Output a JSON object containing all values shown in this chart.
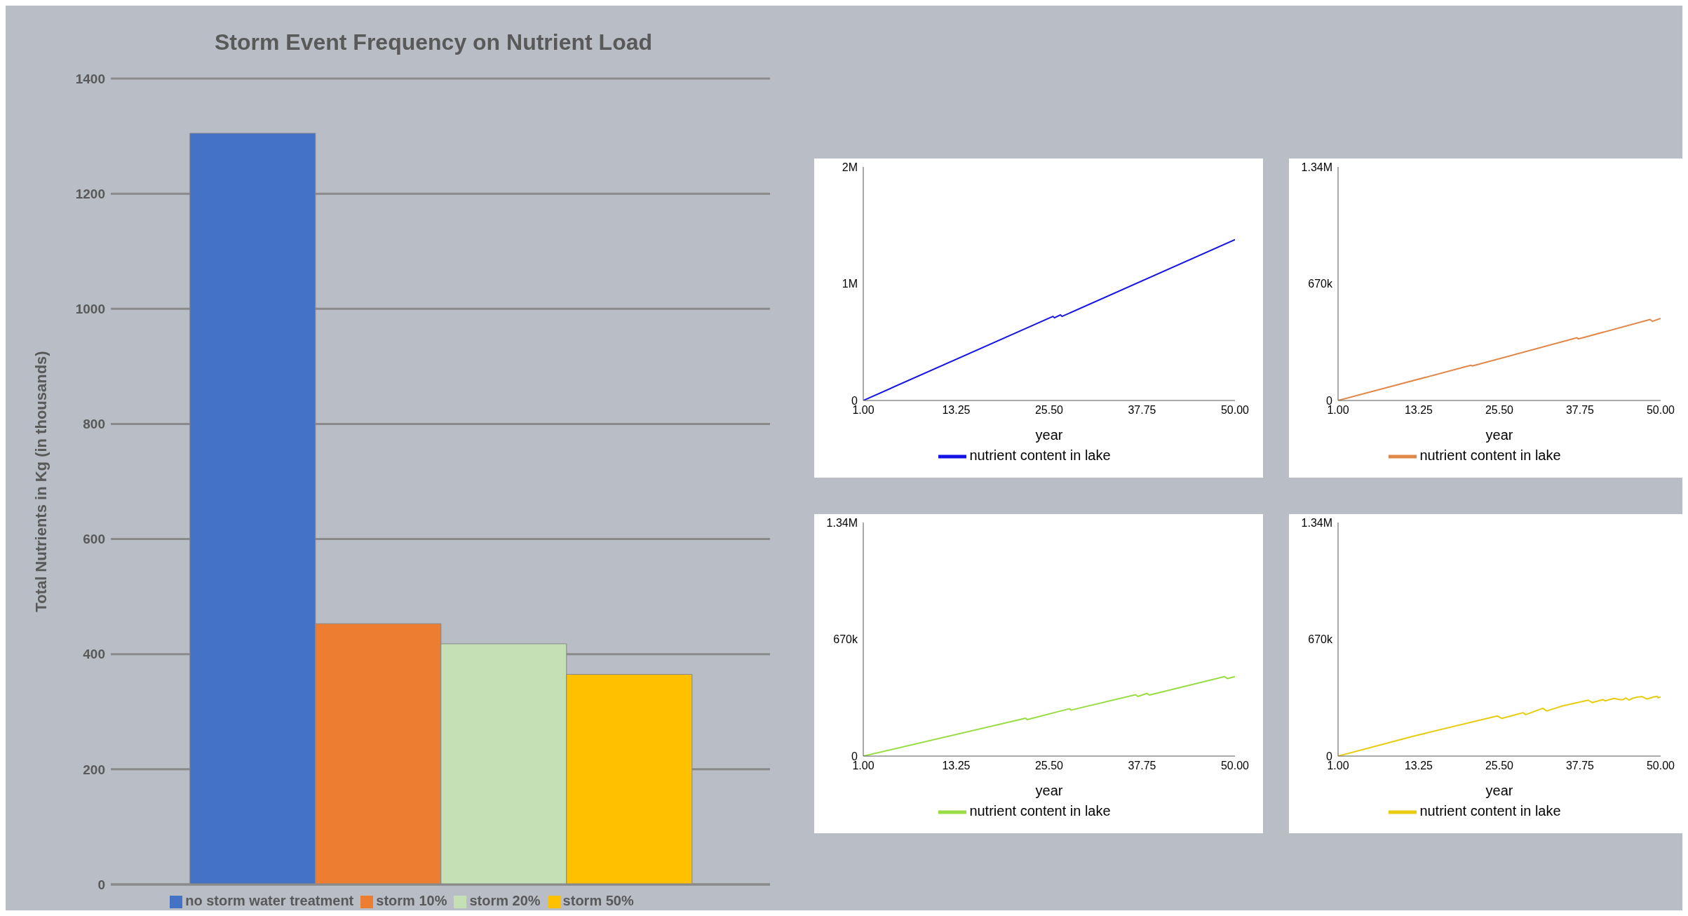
{
  "chart_data": [
    {
      "type": "bar",
      "title": "Storm Event Frequency on Nutrient Load",
      "ylabel": "Total Nutrients in Kg (in thousands)",
      "categories": [
        null
      ],
      "series": [
        {
          "name": "no storm water treatment",
          "color": "#4472c4",
          "values": [
            1305
          ]
        },
        {
          "name": "storm 10%",
          "color": "#ed7d31",
          "values": [
            453
          ]
        },
        {
          "name": "storm 20%",
          "color": "#c5e0b4",
          "values": [
            418
          ]
        },
        {
          "name": "storm 50%",
          "color": "#ffc000",
          "values": [
            365
          ]
        }
      ],
      "ylim": [
        0,
        1400
      ],
      "yticks": [
        0,
        200,
        400,
        600,
        800,
        1000,
        1200,
        1400
      ],
      "grid": "y",
      "legend": "bottom"
    },
    {
      "type": "line",
      "xlabel": "year",
      "xlim": [
        1,
        50
      ],
      "xticks": [
        {
          "value": 1,
          "label": "1.00"
        },
        {
          "value": 13.25,
          "label": "13.25"
        },
        {
          "value": 25.5,
          "label": "25.50"
        },
        {
          "value": 37.75,
          "label": "37.75"
        },
        {
          "value": 50,
          "label": "50.00"
        }
      ],
      "ylim": [
        0,
        2000000
      ],
      "yticks": [
        0,
        {
          "value": 1000000,
          "label": "1M"
        },
        {
          "value": 2000000,
          "label": "2M"
        }
      ],
      "legend": "bottom",
      "marker": "none",
      "series": [
        {
          "name": "nutrient content in lake",
          "color": "#1414e6",
          "x": [
            1,
            26,
            26.2,
            27,
            27.2,
            50
          ],
          "values": [
            0,
            720000,
            708000,
            733000,
            720000,
            1377000
          ]
        }
      ]
    },
    {
      "type": "line",
      "xlabel": "year",
      "xlim": [
        1,
        50
      ],
      "xticks": [
        {
          "value": 1,
          "label": "1.00"
        },
        {
          "value": 13.25,
          "label": "13.25"
        },
        {
          "value": 25.5,
          "label": "25.50"
        },
        {
          "value": 37.75,
          "label": "37.75"
        },
        {
          "value": 50,
          "label": "50.00"
        }
      ],
      "ylim": [
        0,
        1340000
      ],
      "yticks": [
        0,
        {
          "value": 670000,
          "label": "670k"
        },
        {
          "value": 1340000,
          "label": "1.34M"
        }
      ],
      "legend": "bottom",
      "marker": "none",
      "series": [
        {
          "name": "nutrient content in lake",
          "color": "#e0884a",
          "x": [
            1,
            21.2,
            21.4,
            37.3,
            37.5,
            48.4,
            48.75,
            50
          ],
          "values": [
            0,
            202000,
            198000,
            360000,
            353000,
            465000,
            454000,
            471000
          ]
        }
      ]
    },
    {
      "type": "line",
      "xlabel": "year",
      "xlim": [
        1,
        50
      ],
      "xticks": [
        {
          "value": 1,
          "label": "1.00"
        },
        {
          "value": 13.25,
          "label": "13.25"
        },
        {
          "value": 25.5,
          "label": "25.50"
        },
        {
          "value": 37.75,
          "label": "37.75"
        },
        {
          "value": 50,
          "label": "50.00"
        }
      ],
      "ylim": [
        0,
        1340000
      ],
      "yticks": [
        0,
        {
          "value": 670000,
          "label": "670k"
        },
        {
          "value": 1340000,
          "label": "1.34M"
        }
      ],
      "legend": "bottom",
      "marker": "none",
      "series": [
        {
          "name": "nutrient content in lake",
          "color": "#99dd44",
          "x": [
            1,
            22.4,
            22.6,
            28.2,
            28.4,
            36.9,
            37.2,
            38.4,
            38.7,
            48.6,
            49,
            50
          ],
          "values": [
            0,
            217000,
            209000,
            272000,
            264000,
            352000,
            342000,
            360000,
            350000,
            456000,
            445000,
            456000
          ]
        }
      ]
    },
    {
      "type": "line",
      "xlabel": "year",
      "xlim": [
        1,
        50
      ],
      "xticks": [
        {
          "value": 1,
          "label": "1.00"
        },
        {
          "value": 13.25,
          "label": "13.25"
        },
        {
          "value": 25.5,
          "label": "25.50"
        },
        {
          "value": 37.75,
          "label": "37.75"
        },
        {
          "value": 50,
          "label": "50.00"
        }
      ],
      "ylim": [
        0,
        1340000
      ],
      "yticks": [
        0,
        {
          "value": 670000,
          "label": "670k"
        },
        {
          "value": 1340000,
          "label": "1.34M"
        }
      ],
      "legend": "bottom",
      "marker": "none",
      "series": [
        {
          "name": "nutrient content in lake",
          "color": "#e8cc10",
          "x": [
            1,
            12.5,
            25.2,
            25.9,
            29.1,
            29.5,
            32.1,
            32.7,
            35.1,
            39,
            39.6,
            41.2,
            41.6,
            42.9,
            43.8,
            44.3,
            44.7,
            45.2,
            45.7,
            46.5,
            47.2,
            47.9,
            48.9,
            49.5,
            49.6,
            50
          ],
          "values": [
            0,
            115000,
            230000,
            216000,
            249000,
            238000,
            274000,
            259000,
            288000,
            321000,
            307000,
            324000,
            317000,
            331000,
            324000,
            324000,
            334000,
            321000,
            331000,
            339000,
            341000,
            327000,
            339000,
            343000,
            334000,
            339000
          ]
        }
      ]
    }
  ]
}
